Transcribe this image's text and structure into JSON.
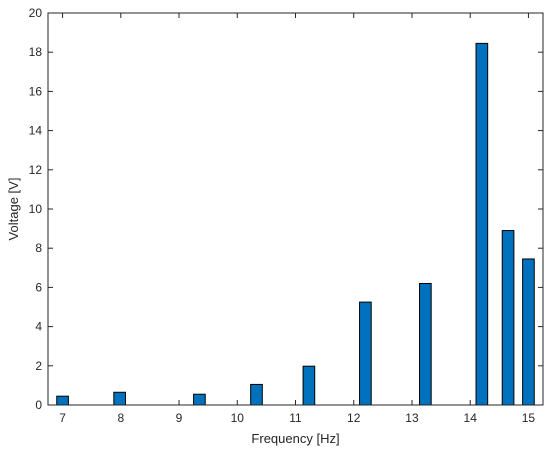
{
  "chart_data": {
    "type": "bar",
    "title": "",
    "xlabel": "Frequency [Hz]",
    "ylabel": "Voltage [V]",
    "xlim": [
      6.75,
      15.25
    ],
    "ylim": [
      0,
      20
    ],
    "x_ticks": [
      7,
      8,
      9,
      10,
      11,
      12,
      13,
      14,
      15
    ],
    "y_ticks": [
      0,
      2,
      4,
      6,
      8,
      10,
      12,
      14,
      16,
      18,
      20
    ],
    "grid": false,
    "box": true,
    "bar_width": 0.2,
    "series": [
      {
        "x": [
          7.0,
          7.98,
          9.35,
          10.33,
          11.23,
          12.2,
          13.23,
          14.2,
          14.65,
          15.0
        ],
        "values": [
          0.45,
          0.65,
          0.55,
          1.05,
          1.98,
          5.25,
          6.2,
          18.45,
          8.9,
          7.45
        ],
        "color": "#0072BD"
      }
    ]
  }
}
